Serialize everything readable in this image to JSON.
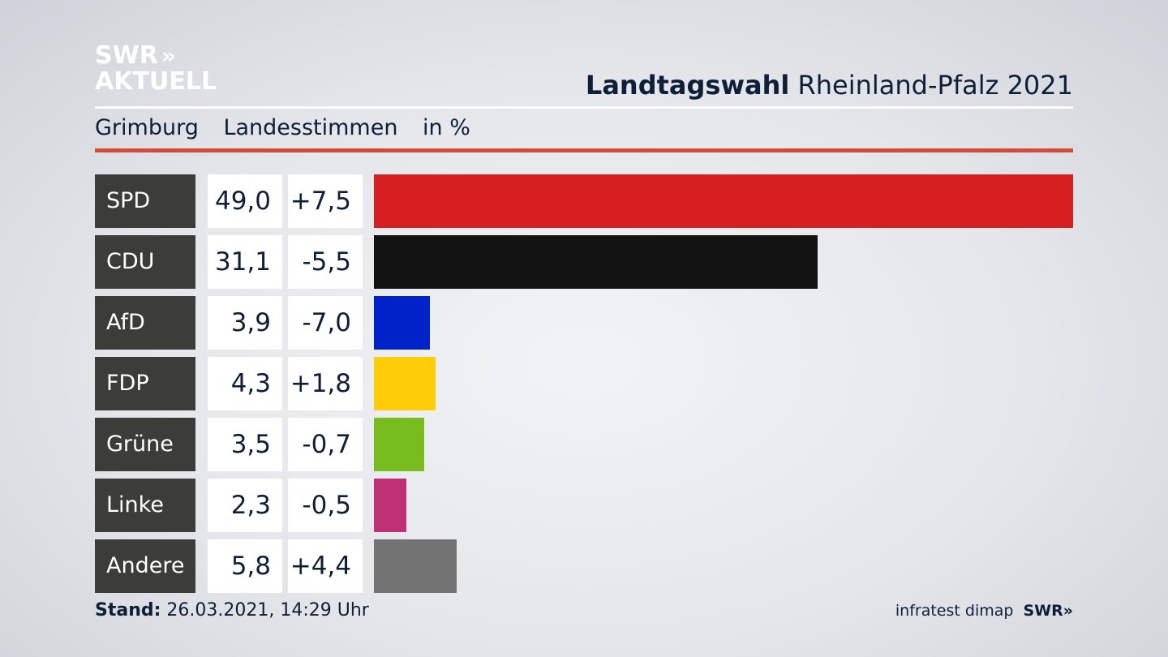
{
  "logo": {
    "line1": "SWR",
    "arrows": "»",
    "line2": "AKTUELL"
  },
  "title": {
    "bold": "Landtagswahl",
    "rest": "Rheinland-Pfalz 2021"
  },
  "subtitle": {
    "place": "Grimburg",
    "measure": "Landesstimmen",
    "unit": "in %"
  },
  "footer": {
    "label": "Stand:",
    "value": "26.03.2021, 14:29 Uhr"
  },
  "source": {
    "text": "infratest dimap",
    "logo": "SWR",
    "arrows": "»"
  },
  "chart_data": {
    "type": "bar",
    "orientation": "horizontal",
    "categories": [
      "SPD",
      "CDU",
      "AfD",
      "FDP",
      "Grüne",
      "Linke",
      "Andere"
    ],
    "values": [
      49.0,
      31.1,
      3.9,
      4.3,
      3.5,
      2.3,
      5.8
    ],
    "value_labels": [
      "49,0",
      "31,1",
      "3,9",
      "4,3",
      "3,5",
      "2,3",
      "5,8"
    ],
    "change_labels": [
      "+7,5",
      "-5,5",
      "-7,0",
      "+1,8",
      "-0,7",
      "-0,5",
      "+4,4"
    ],
    "changes": [
      7.5,
      -5.5,
      -7.0,
      1.8,
      -0.7,
      -0.5,
      4.4
    ],
    "colors": [
      "#d51f20",
      "#121212",
      "#0022c8",
      "#ffcc08",
      "#77bd1f",
      "#bf3074",
      "#737373"
    ],
    "xlim": [
      0,
      49.0
    ],
    "grid": false,
    "legend": "none"
  }
}
